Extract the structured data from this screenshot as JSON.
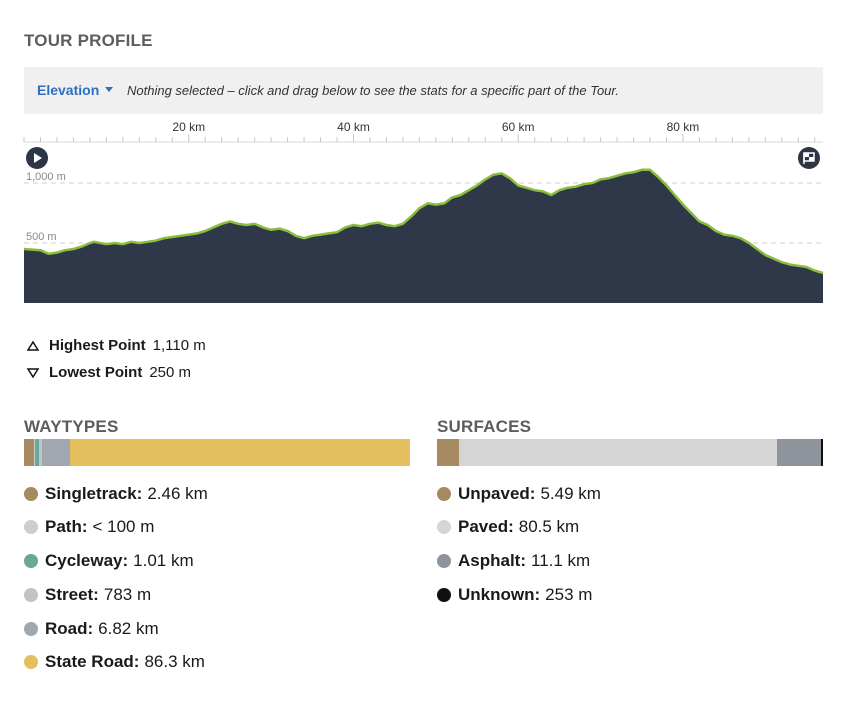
{
  "title": "TOUR PROFILE",
  "toolbar": {
    "metric_label": "Elevation",
    "hint": "Nothing selected – click and drag below to see the stats for a specific part of the Tour."
  },
  "chart_data": {
    "type": "area",
    "xunit": "km",
    "yunit": "m",
    "xlim": [
      0,
      97
    ],
    "ylim": [
      0,
      1400
    ],
    "x_ticks": [
      "20 km",
      "40 km",
      "60 km",
      "80 km"
    ],
    "x_tick_values": [
      20,
      40,
      60,
      80
    ],
    "y_ticks": [
      "1,000 m",
      "500 m"
    ],
    "y_tick_values": [
      1000,
      500
    ],
    "series": [
      {
        "x": [
          0,
          2,
          3,
          4,
          5,
          6,
          7,
          8,
          8.5,
          10,
          11,
          12,
          13,
          14,
          15,
          16,
          17,
          18,
          19,
          20,
          21,
          22,
          23,
          24,
          25,
          26,
          27,
          28,
          29,
          30,
          31,
          32,
          33,
          34,
          35,
          36,
          37,
          38,
          39,
          40,
          41,
          42,
          43,
          44,
          45,
          46,
          47,
          48,
          49,
          50,
          51,
          52,
          53,
          54,
          55,
          56,
          57,
          58,
          59,
          60,
          61,
          62,
          63,
          64,
          65,
          66,
          67,
          68,
          69,
          70,
          71,
          72,
          73,
          74,
          75,
          76,
          77,
          78,
          79,
          80,
          81,
          82,
          83,
          84,
          85,
          86,
          87,
          88,
          89,
          90,
          91,
          92,
          93,
          94,
          95,
          96,
          97
        ],
        "y": [
          450,
          440,
          410,
          420,
          440,
          450,
          470,
          500,
          510,
          490,
          500,
          490,
          510,
          500,
          510,
          520,
          540,
          550,
          560,
          570,
          580,
          600,
          630,
          660,
          680,
          660,
          650,
          660,
          630,
          610,
          620,
          600,
          560,
          540,
          560,
          570,
          580,
          590,
          630,
          650,
          640,
          660,
          670,
          650,
          640,
          660,
          720,
          790,
          830,
          820,
          830,
          880,
          900,
          940,
          980,
          1030,
          1070,
          1080,
          1040,
          980,
          960,
          940,
          930,
          900,
          940,
          960,
          970,
          990,
          1000,
          1030,
          1040,
          1060,
          1080,
          1090,
          1110,
          1110,
          1050,
          980,
          900,
          820,
          750,
          680,
          650,
          600,
          570,
          560,
          540,
          500,
          450,
          400,
          370,
          340,
          320,
          310,
          300,
          270,
          250
        ]
      }
    ]
  },
  "stats": {
    "highest_label": "Highest Point",
    "highest_value": "1,110 m",
    "lowest_label": "Lowest Point",
    "lowest_value": "250 m"
  },
  "waytypes": {
    "title": "WAYTYPES",
    "items": [
      {
        "name": "Singletrack:",
        "value": "2.46 km",
        "color": "#a58a62",
        "share": 2.6
      },
      {
        "name": "Path:",
        "value": "< 100 m",
        "color": "#c9ced3",
        "share": 0.3
      },
      {
        "name": "Cycleway:",
        "value": "1.01 km",
        "color": "#6aa79b",
        "share": 1.0
      },
      {
        "name": "Street:",
        "value": "783 m",
        "color": "#bfc4c9",
        "share": 0.8
      },
      {
        "name": "Road:",
        "value": "6.82 km",
        "color": "#a0a7b0",
        "share": 7.1
      },
      {
        "name": "State Road:",
        "value": "86.3 km",
        "color": "#e3c05d",
        "share": 88.2
      }
    ]
  },
  "surfaces": {
    "title": "SURFACES",
    "items": [
      {
        "name": "Unpaved:",
        "value": "5.49 km",
        "color": "#a58a62",
        "share": 5.6
      },
      {
        "name": "Paved:",
        "value": "80.5 km",
        "color": "#d5d5d5",
        "share": 82.6
      },
      {
        "name": "Asphalt:",
        "value": "11.1 km",
        "color": "#8d949c",
        "share": 11.4
      },
      {
        "name": "Unknown:",
        "value": "253 m",
        "color": "#111111",
        "share": 0.4
      }
    ]
  }
}
